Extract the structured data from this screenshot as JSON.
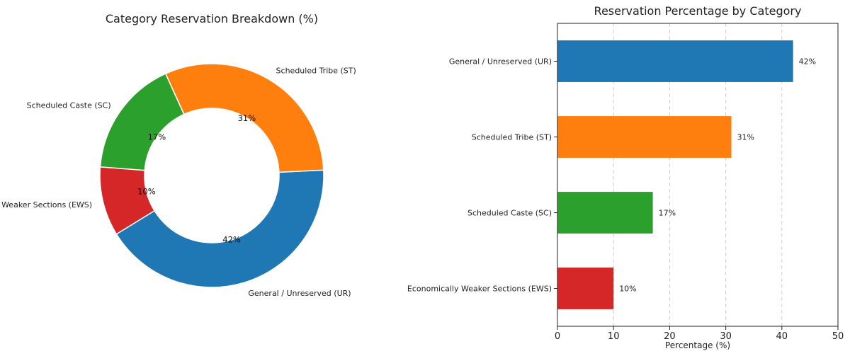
{
  "chart_data": [
    {
      "type": "pie",
      "title": "Category Reservation Breakdown (%)",
      "donut": true,
      "slices": [
        {
          "label": "General / Unreserved (UR)",
          "value": 42,
          "pct_label": "42%",
          "color": "#1f77b4"
        },
        {
          "label": "Scheduled Tribe (ST)",
          "value": 31,
          "pct_label": "31%",
          "color": "#ff7f0e"
        },
        {
          "label": "Scheduled Caste (SC)",
          "value": 17,
          "pct_label": "17%",
          "color": "#2ca02c"
        },
        {
          "label": "Economically Weaker Sections (EWS)",
          "value": 10,
          "pct_label": "10%",
          "color": "#d62728"
        }
      ]
    },
    {
      "type": "bar",
      "orientation": "horizontal",
      "title": "Reservation Percentage by Category",
      "xlabel": "Percentage (%)",
      "ylabel": "",
      "xlim": [
        0,
        50
      ],
      "xticks": [
        "0",
        "10",
        "20",
        "30",
        "40",
        "50"
      ],
      "grid": "x-dashed",
      "categories": [
        "General / Unreserved (UR)",
        "Scheduled Tribe (ST)",
        "Scheduled Caste (SC)",
        "Economically Weaker Sections (EWS)"
      ],
      "values": [
        42,
        31,
        17,
        10
      ],
      "value_labels": [
        "42%",
        "31%",
        "17%",
        "10%"
      ],
      "colors": [
        "#1f77b4",
        "#ff7f0e",
        "#2ca02c",
        "#d62728"
      ]
    }
  ]
}
